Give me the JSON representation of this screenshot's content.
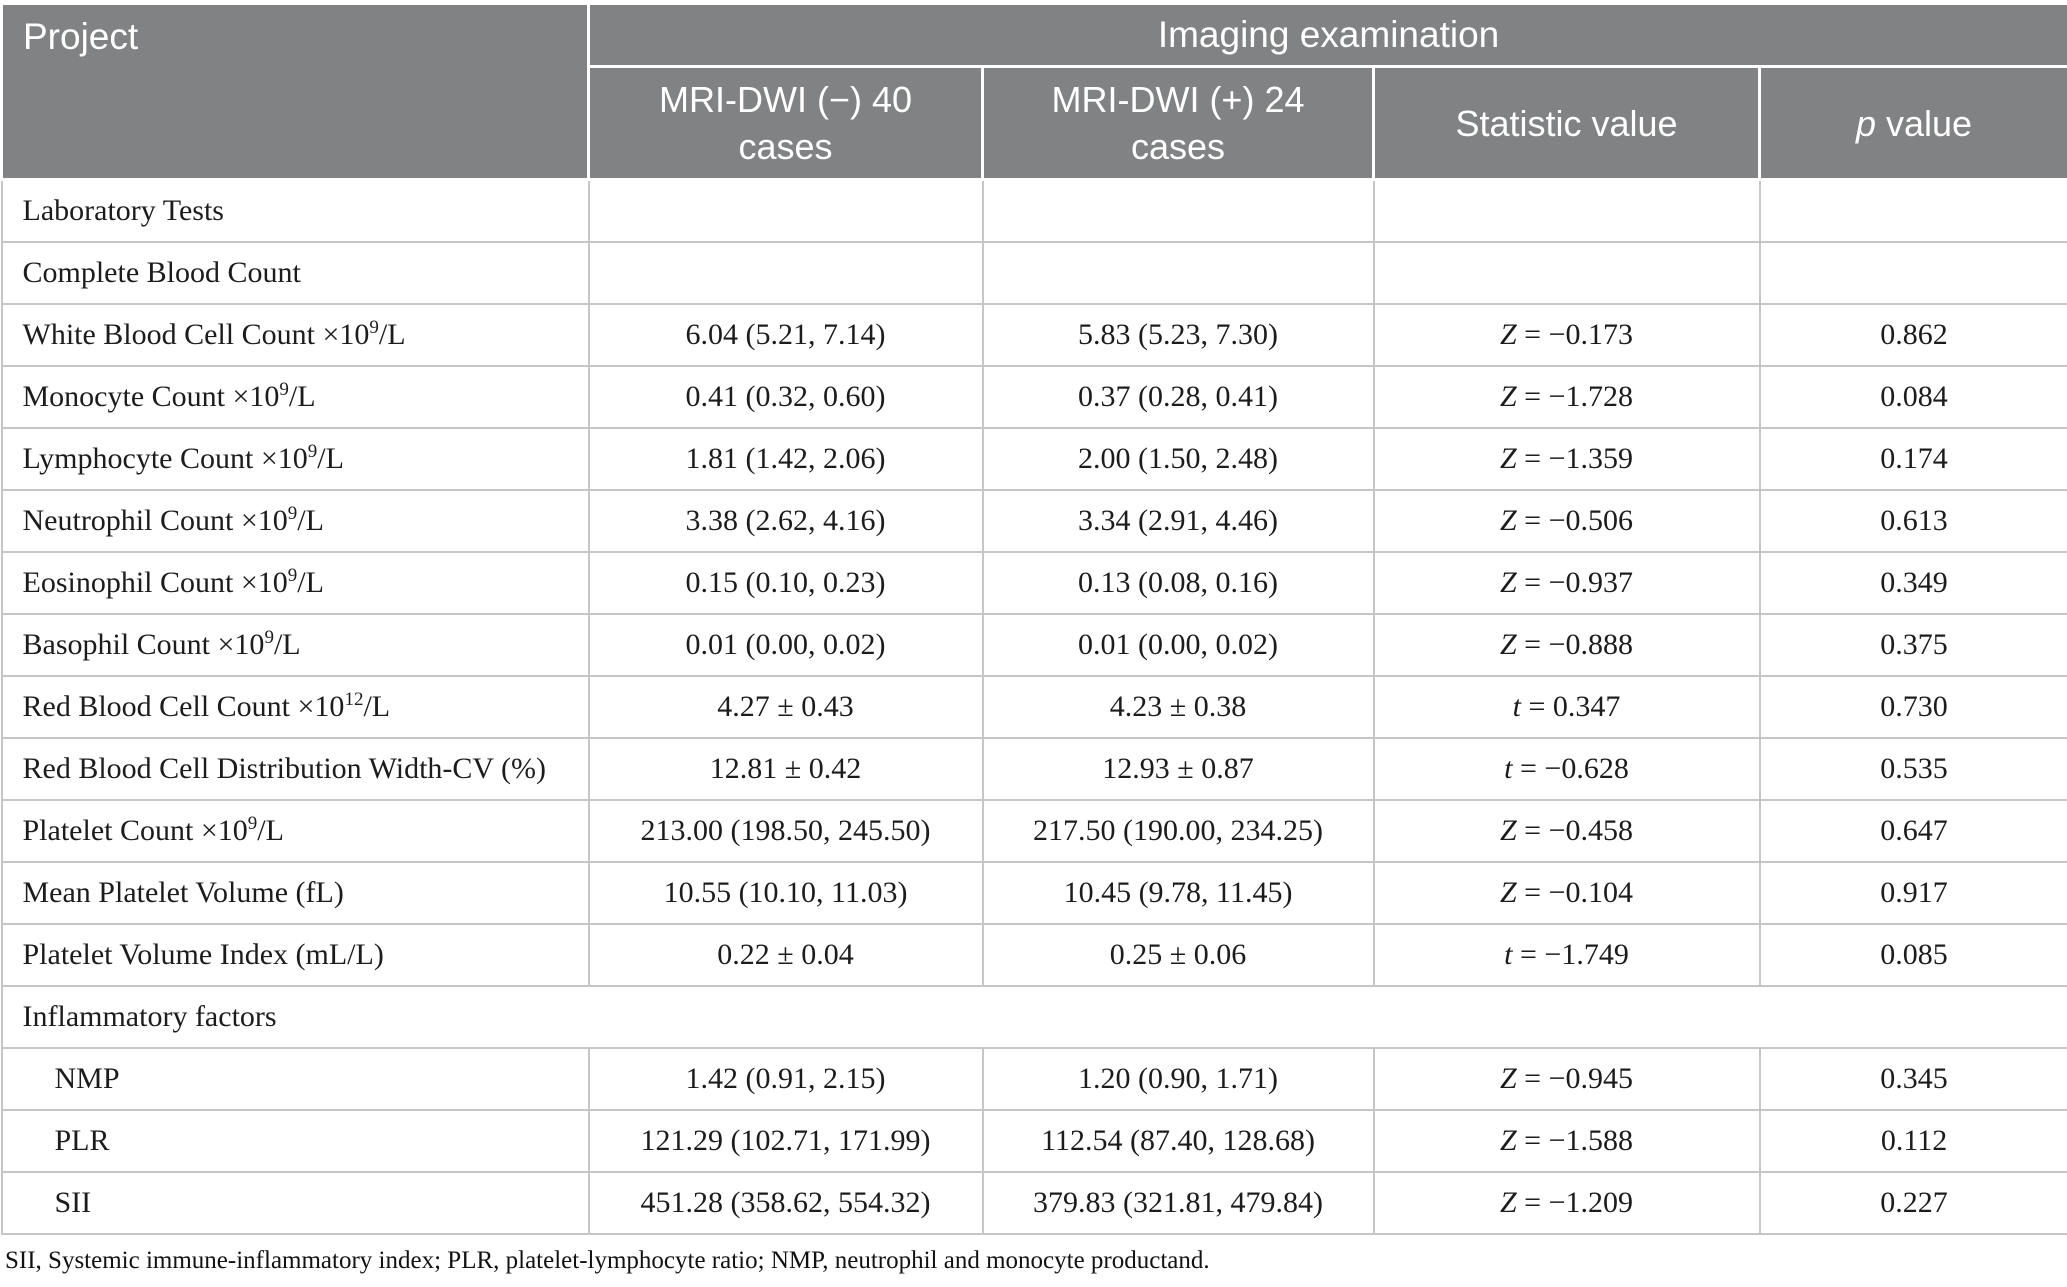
{
  "colors": {
    "header_bg": "#818284",
    "header_text": "#ffffff",
    "header_divider": "#ffffff",
    "body_border": "#c6c6c6",
    "body_text": "#1c1c1c",
    "page_bg": "#ffffff"
  },
  "table": {
    "header": {
      "project": "Project",
      "imaging_group": "Imaging examination",
      "columns": [
        [
          {
            "t": "MRI-DWI (−) 40 cases"
          }
        ],
        [
          {
            "t": "MRI-DWI (+) 24 cases"
          }
        ],
        [
          {
            "t": "Statistic value"
          }
        ],
        [
          {
            "t": "p",
            "i": true
          },
          {
            "t": " value"
          }
        ]
      ]
    },
    "rows": [
      {
        "label": [
          {
            "t": "Laboratory Tests"
          }
        ],
        "cells": [
          [],
          [],
          [],
          []
        ]
      },
      {
        "label": [
          {
            "t": "Complete Blood Count"
          }
        ],
        "cells": [
          [],
          [],
          [],
          []
        ]
      },
      {
        "label": [
          {
            "t": "White Blood Cell Count ×10"
          },
          {
            "t": "9",
            "sup": true
          },
          {
            "t": "/L"
          }
        ],
        "cells": [
          [
            {
              "t": "6.04 (5.21, 7.14)"
            }
          ],
          [
            {
              "t": "5.83 (5.23, 7.30)"
            }
          ],
          [
            {
              "t": "Z",
              "i": true
            },
            {
              "t": " = −0.173"
            }
          ],
          [
            {
              "t": "0.862"
            }
          ]
        ]
      },
      {
        "label": [
          {
            "t": "Monocyte Count ×10"
          },
          {
            "t": "9",
            "sup": true
          },
          {
            "t": "/L"
          }
        ],
        "cells": [
          [
            {
              "t": "0.41 (0.32, 0.60)"
            }
          ],
          [
            {
              "t": "0.37 (0.28, 0.41)"
            }
          ],
          [
            {
              "t": "Z",
              "i": true
            },
            {
              "t": " = −1.728"
            }
          ],
          [
            {
              "t": "0.084"
            }
          ]
        ]
      },
      {
        "label": [
          {
            "t": "Lymphocyte Count ×10"
          },
          {
            "t": "9",
            "sup": true
          },
          {
            "t": "/L"
          }
        ],
        "cells": [
          [
            {
              "t": "1.81 (1.42, 2.06)"
            }
          ],
          [
            {
              "t": "2.00 (1.50, 2.48)"
            }
          ],
          [
            {
              "t": "Z",
              "i": true
            },
            {
              "t": " = −1.359"
            }
          ],
          [
            {
              "t": "0.174"
            }
          ]
        ]
      },
      {
        "label": [
          {
            "t": "Neutrophil Count ×10"
          },
          {
            "t": "9",
            "sup": true
          },
          {
            "t": "/L"
          }
        ],
        "cells": [
          [
            {
              "t": "3.38 (2.62, 4.16)"
            }
          ],
          [
            {
              "t": "3.34 (2.91, 4.46)"
            }
          ],
          [
            {
              "t": "Z",
              "i": true
            },
            {
              "t": " = −0.506"
            }
          ],
          [
            {
              "t": "0.613"
            }
          ]
        ]
      },
      {
        "label": [
          {
            "t": "Eosinophil Count ×10"
          },
          {
            "t": "9",
            "sup": true
          },
          {
            "t": "/L"
          }
        ],
        "cells": [
          [
            {
              "t": "0.15 (0.10, 0.23)"
            }
          ],
          [
            {
              "t": "0.13 (0.08, 0.16)"
            }
          ],
          [
            {
              "t": "Z",
              "i": true
            },
            {
              "t": " = −0.937"
            }
          ],
          [
            {
              "t": "0.349"
            }
          ]
        ]
      },
      {
        "label": [
          {
            "t": "Basophil Count ×10"
          },
          {
            "t": "9",
            "sup": true
          },
          {
            "t": "/L"
          }
        ],
        "cells": [
          [
            {
              "t": "0.01 (0.00, 0.02)"
            }
          ],
          [
            {
              "t": "0.01 (0.00, 0.02)"
            }
          ],
          [
            {
              "t": "Z",
              "i": true
            },
            {
              "t": " = −0.888"
            }
          ],
          [
            {
              "t": "0.375"
            }
          ]
        ]
      },
      {
        "label": [
          {
            "t": "Red Blood Cell Count ×10"
          },
          {
            "t": "12",
            "sup": true
          },
          {
            "t": "/L"
          }
        ],
        "cells": [
          [
            {
              "t": "4.27 ± 0.43"
            }
          ],
          [
            {
              "t": "4.23 ± 0.38"
            }
          ],
          [
            {
              "t": "t",
              "i": true
            },
            {
              "t": " = 0.347"
            }
          ],
          [
            {
              "t": "0.730"
            }
          ]
        ]
      },
      {
        "label": [
          {
            "t": "Red Blood Cell Distribution Width-CV (%)"
          }
        ],
        "cells": [
          [
            {
              "t": "12.81 ± 0.42"
            }
          ],
          [
            {
              "t": "12.93 ± 0.87"
            }
          ],
          [
            {
              "t": "t",
              "i": true
            },
            {
              "t": " = −0.628"
            }
          ],
          [
            {
              "t": "0.535"
            }
          ]
        ]
      },
      {
        "label": [
          {
            "t": "Platelet Count ×10"
          },
          {
            "t": "9",
            "sup": true
          },
          {
            "t": "/L"
          }
        ],
        "cells": [
          [
            {
              "t": "213.00 (198.50, 245.50)"
            }
          ],
          [
            {
              "t": "217.50 (190.00, 234.25)"
            }
          ],
          [
            {
              "t": "Z",
              "i": true
            },
            {
              "t": " = −0.458"
            }
          ],
          [
            {
              "t": "0.647"
            }
          ]
        ]
      },
      {
        "label": [
          {
            "t": "Mean Platelet Volume (fL)"
          }
        ],
        "cells": [
          [
            {
              "t": "10.55 (10.10, 11.03)"
            }
          ],
          [
            {
              "t": "10.45 (9.78, 11.45)"
            }
          ],
          [
            {
              "t": "Z",
              "i": true
            },
            {
              "t": " = −0.104"
            }
          ],
          [
            {
              "t": "0.917"
            }
          ]
        ]
      },
      {
        "label": [
          {
            "t": "Platelet Volume Index (mL/L)"
          }
        ],
        "cells": [
          [
            {
              "t": "0.22 ± 0.04"
            }
          ],
          [
            {
              "t": "0.25 ± 0.06"
            }
          ],
          [
            {
              "t": "t",
              "i": true
            },
            {
              "t": " = −1.749"
            }
          ],
          [
            {
              "t": "0.085"
            }
          ]
        ]
      },
      {
        "label": [
          {
            "t": "Inflammatory factors"
          }
        ],
        "span": true
      },
      {
        "label": [
          {
            "t": "NMP"
          }
        ],
        "indent": true,
        "cells": [
          [
            {
              "t": "1.42 (0.91, 2.15)"
            }
          ],
          [
            {
              "t": "1.20 (0.90, 1.71)"
            }
          ],
          [
            {
              "t": "Z",
              "i": true
            },
            {
              "t": " = −0.945"
            }
          ],
          [
            {
              "t": "0.345"
            }
          ]
        ]
      },
      {
        "label": [
          {
            "t": "PLR"
          }
        ],
        "indent": true,
        "cells": [
          [
            {
              "t": "121.29 (102.71, 171.99)"
            }
          ],
          [
            {
              "t": "112.54 (87.40, 128.68)"
            }
          ],
          [
            {
              "t": "Z",
              "i": true
            },
            {
              "t": " = −1.588"
            }
          ],
          [
            {
              "t": "0.112"
            }
          ]
        ]
      },
      {
        "label": [
          {
            "t": "SII"
          }
        ],
        "indent": true,
        "cells": [
          [
            {
              "t": "451.28 (358.62, 554.32)"
            }
          ],
          [
            {
              "t": "379.83 (321.81, 479.84)"
            }
          ],
          [
            {
              "t": "Z",
              "i": true
            },
            {
              "t": " = −1.209"
            }
          ],
          [
            {
              "t": "0.227"
            }
          ]
        ]
      }
    ]
  },
  "footnote": "SII, Systemic immune-inflammatory index; PLR, platelet-lymphocyte ratio; NMP, neutrophil and monocyte productand."
}
